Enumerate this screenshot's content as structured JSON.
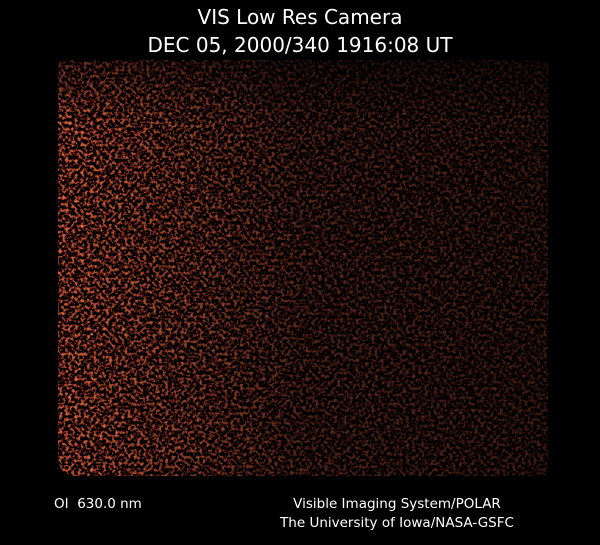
{
  "header": {
    "title": "VIS Low Res Camera",
    "timestamp": "DEC 05, 2000/340 1916:08 UT"
  },
  "footer": {
    "wavelength": "OI  630.0 nm",
    "instrument": "Visible Imaging System/POLAR",
    "institution": "The University of Iowa/NASA-GSFC"
  }
}
